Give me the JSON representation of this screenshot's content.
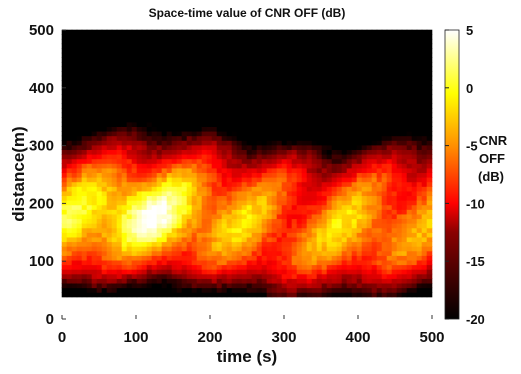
{
  "chart_data": {
    "type": "heatmap",
    "title": "Space-time value of CNR OFF (dB)",
    "xlabel": "time (s)",
    "ylabel": "distance(m)",
    "xlim": [
      0,
      500
    ],
    "ylim": [
      0,
      500
    ],
    "xticks": [
      "0",
      "100",
      "200",
      "300",
      "400",
      "500"
    ],
    "yticks": [
      "0",
      "100",
      "200",
      "300",
      "400",
      "500"
    ],
    "data_x_range": [
      0,
      500
    ],
    "data_y_range": [
      38,
      500
    ],
    "colorbar": {
      "label_lines": [
        "CNR",
        "OFF",
        "(dB)"
      ],
      "ticks": [
        "5",
        "0",
        "-5",
        "-10",
        "-15",
        "-20"
      ],
      "range": [
        -20,
        5
      ],
      "colormap": "hot"
    }
  }
}
